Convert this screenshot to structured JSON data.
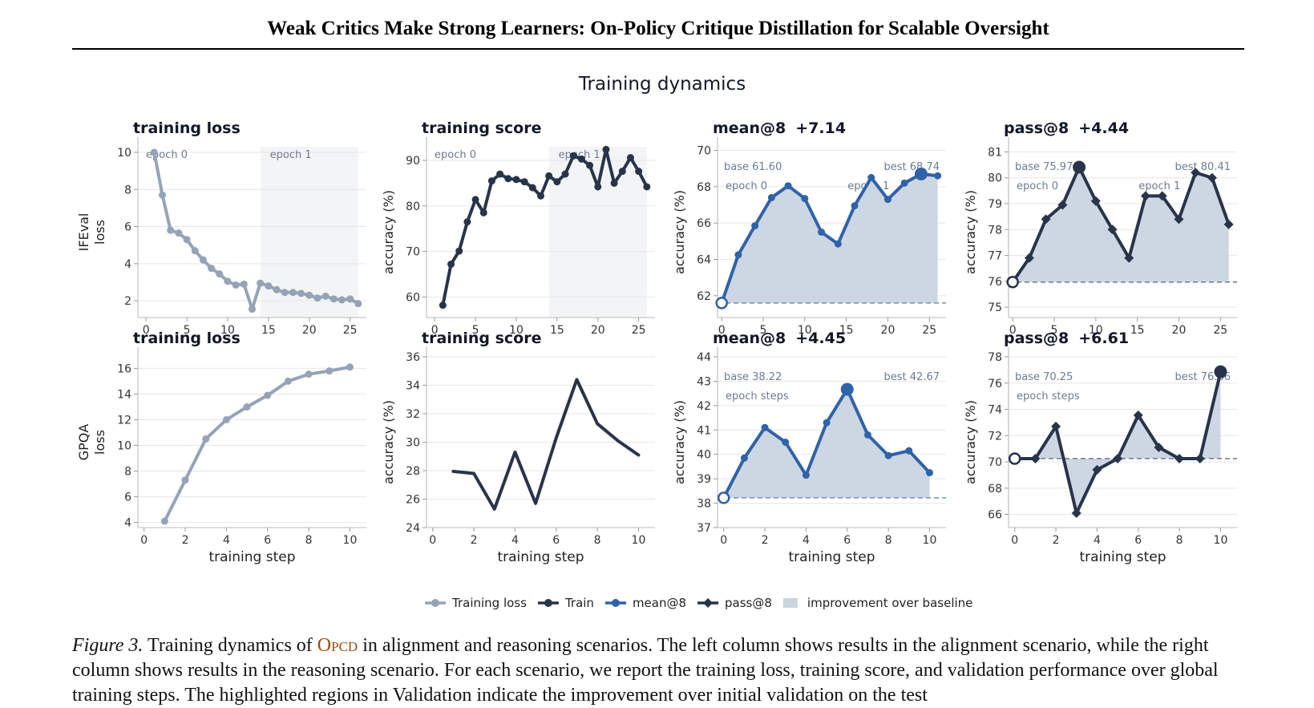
{
  "paper": {
    "header_title": "Weak Critics Make Strong Learners: On-Policy Critique Distillation for Scalable Oversight",
    "caption_label": "Figure 3.",
    "caption_text_1": " Training dynamics of ",
    "caption_method": "Opcd",
    "caption_text_2": " in alignment and reasoning scenarios. The left column shows results in the alignment scenario, while the right column shows results in the reasoning scenario. For each scenario, we report the training loss, training score, and validation performance over global training steps. The highlighted regions in Validation indicate the improvement over initial validation on the test"
  },
  "figure_title": "Training dynamics",
  "colors": {
    "loss": "#94a3b8",
    "train": "#27344a",
    "mean": "#2f62a8",
    "pass": "#27344a",
    "fill": "#cad5e2",
    "epoch_shade": "#f3f4f6",
    "grid": "#e6e6e6"
  },
  "legend": {
    "items": [
      {
        "label": "Training loss",
        "marker": "circle",
        "color": "#94a3b8"
      },
      {
        "label": "Train",
        "marker": "circle",
        "color": "#27344a"
      },
      {
        "label": "mean@8",
        "marker": "circle",
        "color": "#2f62a8"
      },
      {
        "label": "pass@8",
        "marker": "diamond",
        "color": "#27344a"
      },
      {
        "label": "improvement over baseline",
        "marker": "square",
        "color": "#cad5e2"
      }
    ]
  },
  "chart_data": [
    {
      "type": "line",
      "title": "training loss",
      "xlabel": "",
      "ylabel": "IFEval\nloss",
      "xlim": [
        -1,
        27
      ],
      "ylim": [
        1.1,
        10.3
      ],
      "xticks": [
        0,
        5,
        10,
        15,
        20,
        25
      ],
      "yticks": [
        2,
        4,
        6,
        8,
        10
      ],
      "color": "#94a3b8",
      "marker": "circle",
      "epoch_shade": [
        14,
        26
      ],
      "epoch_labels": [
        "epoch 0",
        "epoch 1"
      ],
      "x": [
        1,
        2,
        3,
        4,
        5,
        6,
        7,
        8,
        9,
        10,
        11,
        12,
        13,
        14,
        15,
        16,
        17,
        18,
        19,
        20,
        21,
        22,
        23,
        24,
        25,
        26
      ],
      "y": [
        10.0,
        7.7,
        5.8,
        5.65,
        5.3,
        4.7,
        4.2,
        3.75,
        3.45,
        3.05,
        2.85,
        2.9,
        1.55,
        2.95,
        2.8,
        2.6,
        2.45,
        2.45,
        2.4,
        2.3,
        2.15,
        2.25,
        2.1,
        2.05,
        2.1,
        1.85
      ]
    },
    {
      "type": "line",
      "title": "training score",
      "xlabel": "",
      "ylabel": "accuracy (%)",
      "xlim": [
        -1,
        27
      ],
      "ylim": [
        55.5,
        93
      ],
      "xticks": [
        0,
        5,
        10,
        15,
        20,
        25
      ],
      "yticks": [
        60,
        70,
        80,
        90
      ],
      "color": "#27344a",
      "marker": "circle",
      "epoch_shade": [
        14,
        26
      ],
      "epoch_labels": [
        "epoch 0",
        "epoch 1"
      ],
      "x": [
        1,
        2,
        3,
        4,
        5,
        6,
        7,
        8,
        9,
        10,
        11,
        12,
        13,
        14,
        15,
        16,
        17,
        18,
        19,
        20,
        21,
        22,
        23,
        24,
        25,
        26
      ],
      "y": [
        58.2,
        67.2,
        70.1,
        76.5,
        81.4,
        78.5,
        85.5,
        87.0,
        86.0,
        85.8,
        85.3,
        84.0,
        82.2,
        86.6,
        85.3,
        87.0,
        91.0,
        90.3,
        88.9,
        84.2,
        92.4,
        85.0,
        87.6,
        90.6,
        87.6,
        84.2
      ]
    },
    {
      "type": "area",
      "title": "mean@8",
      "delta": "+7.14",
      "xlabel": "",
      "ylabel": "accuracy (%)",
      "xlim": [
        -0.5,
        27
      ],
      "ylim": [
        60.8,
        70.2
      ],
      "xticks": [
        0,
        5,
        10,
        15,
        20,
        25
      ],
      "yticks": [
        62,
        64,
        66,
        68,
        70
      ],
      "color": "#2f62a8",
      "marker": "circle",
      "baseline": 61.6,
      "best_x": 24,
      "base_label": "base 61.60",
      "best_label": "best 68.74",
      "epoch_labels": [
        "epoch 0",
        "epoch 1"
      ],
      "x": [
        0,
        2,
        4,
        6,
        8,
        10,
        12,
        14,
        16,
        18,
        20,
        22,
        24,
        26
      ],
      "y": [
        61.6,
        64.25,
        65.85,
        67.4,
        68.05,
        67.35,
        65.5,
        64.85,
        66.95,
        68.5,
        67.3,
        68.2,
        68.7,
        68.6
      ]
    },
    {
      "type": "area",
      "title": "pass@8",
      "delta": "+4.44",
      "xlabel": "",
      "ylabel": "accuracy (%)",
      "xlim": [
        -0.5,
        27
      ],
      "ylim": [
        74.6,
        81.2
      ],
      "xticks": [
        0,
        5,
        10,
        15,
        20,
        25
      ],
      "yticks": [
        75,
        76,
        77,
        78,
        79,
        80,
        81
      ],
      "color": "#27344a",
      "marker": "diamond",
      "baseline": 75.97,
      "best_x": 8,
      "base_label": "base 75.97",
      "best_label": "best 80.41",
      "epoch_labels": [
        "epoch 0",
        "epoch 1"
      ],
      "x": [
        0,
        2,
        4,
        6,
        8,
        10,
        12,
        14,
        16,
        18,
        20,
        22,
        24,
        26
      ],
      "y": [
        75.97,
        76.9,
        78.4,
        78.95,
        80.41,
        79.1,
        78.0,
        76.9,
        79.3,
        79.3,
        78.4,
        80.2,
        80.0,
        78.2
      ]
    },
    {
      "type": "line",
      "title": "training loss",
      "xlabel": "training step",
      "ylabel": "GPQA\nloss",
      "xlim": [
        -0.3,
        10.8
      ],
      "ylim": [
        3.6,
        16.9
      ],
      "xticks": [
        0,
        2,
        4,
        6,
        8,
        10
      ],
      "yticks": [
        4,
        6,
        8,
        10,
        12,
        14,
        16
      ],
      "color": "#94a3b8",
      "marker": "circle",
      "x": [
        1,
        2,
        3,
        4,
        5,
        6,
        7,
        8,
        9,
        10
      ],
      "y": [
        4.1,
        7.3,
        10.5,
        12.0,
        13.0,
        13.9,
        15.0,
        15.55,
        15.8,
        16.1
      ]
    },
    {
      "type": "line",
      "title": "training score",
      "xlabel": "training step",
      "ylabel": "accuracy (%)",
      "xlim": [
        -0.3,
        10.8
      ],
      "ylim": [
        24,
        36
      ],
      "xticks": [
        0,
        2,
        4,
        6,
        8,
        10
      ],
      "yticks": [
        24,
        26,
        28,
        30,
        32,
        34,
        36
      ],
      "color": "#27344a",
      "marker": "none",
      "x": [
        1,
        2,
        3,
        4,
        5,
        6,
        7,
        8,
        9,
        10
      ],
      "y": [
        27.95,
        27.8,
        25.3,
        29.3,
        25.7,
        30.3,
        34.4,
        31.3,
        30.1,
        29.1
      ]
    },
    {
      "type": "area",
      "title": "mean@8",
      "delta": "+4.45",
      "xlabel": "training step",
      "ylabel": "accuracy (%)",
      "xlim": [
        -0.3,
        10.8
      ],
      "ylim": [
        37,
        44
      ],
      "xticks": [
        0,
        2,
        4,
        6,
        8,
        10
      ],
      "yticks": [
        37,
        38,
        39,
        40,
        41,
        42,
        43,
        44
      ],
      "color": "#2f62a8",
      "marker": "circle",
      "baseline": 38.22,
      "best_x": 6,
      "base_label": "base 38.22",
      "best_label": "best 42.67",
      "epoch_labels": [
        "epoch steps"
      ],
      "x": [
        0,
        1,
        2,
        3,
        4,
        5,
        6,
        7,
        8,
        9,
        10
      ],
      "y": [
        38.22,
        39.85,
        41.1,
        40.5,
        39.15,
        41.3,
        42.67,
        40.8,
        39.95,
        40.15,
        39.25
      ]
    },
    {
      "type": "area",
      "title": "pass@8",
      "delta": "+6.61",
      "xlabel": "training step",
      "ylabel": "accuracy (%)",
      "xlim": [
        -0.3,
        10.8
      ],
      "ylim": [
        65,
        78
      ],
      "xticks": [
        0,
        2,
        4,
        6,
        8,
        10
      ],
      "yticks": [
        66,
        68,
        70,
        72,
        74,
        76,
        78
      ],
      "color": "#27344a",
      "marker": "diamond",
      "baseline": 70.25,
      "best_x": 10,
      "base_label": "base 70.25",
      "best_label": "best 76.86",
      "epoch_labels": [
        "epoch steps"
      ],
      "x": [
        0,
        1,
        2,
        3,
        4,
        5,
        6,
        7,
        8,
        9,
        10
      ],
      "y": [
        70.25,
        70.25,
        72.7,
        66.1,
        69.4,
        70.25,
        73.55,
        71.1,
        70.25,
        70.25,
        76.86
      ]
    }
  ]
}
